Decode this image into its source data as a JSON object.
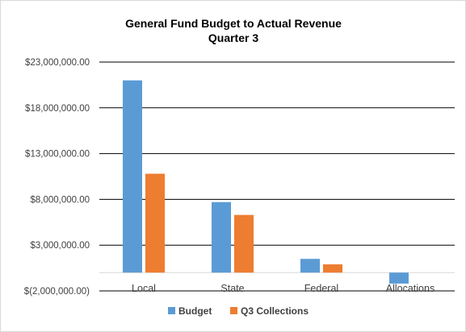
{
  "chart_data": {
    "type": "bar",
    "title": "General Fund Budget to Actual Revenue",
    "subtitle": "Quarter 3",
    "categories": [
      "Local",
      "State",
      "Federal",
      "Allocations"
    ],
    "series": [
      {
        "name": "Budget",
        "color": "#5b9bd5",
        "values": [
          21000000,
          7700000,
          1500000,
          -1200000
        ]
      },
      {
        "name": "Q3 Collections",
        "color": "#ed7d31",
        "values": [
          10800000,
          6300000,
          900000,
          0
        ]
      }
    ],
    "ylim": [
      -2000000,
      23000000
    ],
    "ytick_step": 5000000,
    "ytick_labels": [
      "$(2,000,000.00)",
      "$3,000,000.00",
      "$8,000,000.00",
      "$13,000,000.00",
      "$18,000,000.00",
      "$23,000,000.00"
    ],
    "grid": true,
    "legend": "bottom"
  }
}
